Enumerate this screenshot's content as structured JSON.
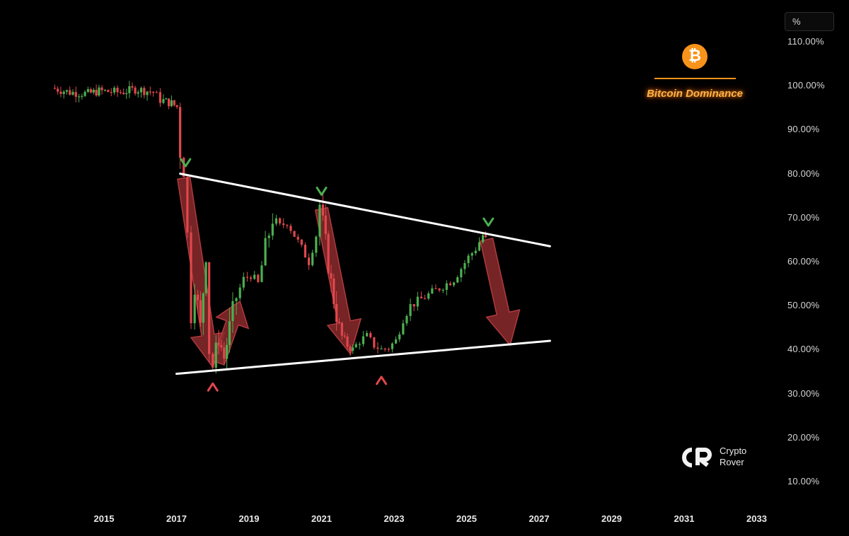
{
  "chart_data": {
    "type": "candlestick",
    "title": "Bitcoin Dominance",
    "unit_label": "%",
    "ylim": [
      5,
      115
    ],
    "xlim": [
      2014.0,
      2033.7
    ],
    "y_ticks": [
      "110.00%",
      "100.00%",
      "90.00%",
      "80.00%",
      "70.00%",
      "60.00%",
      "50.00%",
      "40.00%",
      "30.00%",
      "20.00%",
      "10.00%"
    ],
    "y_tick_values": [
      110,
      100,
      90,
      80,
      70,
      60,
      50,
      40,
      30,
      20,
      10
    ],
    "x_ticks": [
      "2015",
      "2017",
      "2019",
      "2021",
      "2023",
      "2025",
      "2027",
      "2029",
      "2031",
      "2033"
    ],
    "x_tick_values": [
      2015,
      2017,
      2019,
      2021,
      2023,
      2025,
      2027,
      2029,
      2031,
      2033
    ],
    "series": [
      {
        "values": [
          [
            2013.6,
            99.5
          ],
          [
            2014.1,
            98.5
          ],
          [
            2014.6,
            98.2
          ],
          [
            2014.9,
            98.8
          ],
          [
            2015.5,
            98.5
          ],
          [
            2015.9,
            99.2
          ],
          [
            2016.4,
            98.6
          ],
          [
            2016.6,
            96.8
          ],
          [
            2016.9,
            96.0
          ],
          [
            2017.05,
            95.2
          ],
          [
            2017.15,
            85.0
          ],
          [
            2017.25,
            80.0
          ],
          [
            2017.35,
            66.0
          ],
          [
            2017.45,
            48.0
          ],
          [
            2017.55,
            55.0
          ],
          [
            2017.7,
            45.0
          ],
          [
            2017.85,
            62.0
          ],
          [
            2017.95,
            40.0
          ],
          [
            2018.05,
            36.0
          ],
          [
            2018.2,
            43.0
          ],
          [
            2018.35,
            38.0
          ],
          [
            2018.5,
            45.0
          ],
          [
            2018.7,
            52.0
          ],
          [
            2018.9,
            56.0
          ],
          [
            2019.1,
            57.0
          ],
          [
            2019.3,
            55.0
          ],
          [
            2019.5,
            63.0
          ],
          [
            2019.7,
            70.0
          ],
          [
            2019.9,
            68.0
          ],
          [
            2020.1,
            69.0
          ],
          [
            2020.3,
            66.0
          ],
          [
            2020.5,
            63.0
          ],
          [
            2020.7,
            60.0
          ],
          [
            2020.9,
            66.0
          ],
          [
            2021.0,
            73.0
          ],
          [
            2021.15,
            64.0
          ],
          [
            2021.3,
            55.0
          ],
          [
            2021.45,
            48.0
          ],
          [
            2021.6,
            43.0
          ],
          [
            2021.75,
            41.0
          ],
          [
            2021.9,
            40.0
          ],
          [
            2022.1,
            42.0
          ],
          [
            2022.3,
            43.0
          ],
          [
            2022.5,
            41.0
          ],
          [
            2022.7,
            40.0
          ],
          [
            2022.9,
            40.5
          ],
          [
            2023.1,
            42.0
          ],
          [
            2023.3,
            47.0
          ],
          [
            2023.5,
            50.0
          ],
          [
            2023.7,
            51.0
          ],
          [
            2023.9,
            52.0
          ],
          [
            2024.1,
            53.0
          ],
          [
            2024.3,
            54.0
          ],
          [
            2024.5,
            55.0
          ],
          [
            2024.7,
            56.0
          ],
          [
            2024.9,
            58.5
          ],
          [
            2025.1,
            61.0
          ],
          [
            2025.3,
            63.0
          ],
          [
            2025.5,
            66.0
          ],
          [
            2025.55,
            65.0
          ]
        ]
      }
    ],
    "trendlines": [
      {
        "name": "resistance",
        "from": [
          2017.1,
          80.0
        ],
        "to": [
          2027.3,
          63.5
        ]
      },
      {
        "name": "support",
        "from": [
          2017.0,
          34.5
        ],
        "to": [
          2027.3,
          42.0
        ]
      }
    ],
    "arrows": [
      {
        "from": [
          2017.2,
          79.0
        ],
        "to": [
          2018.0,
          36.0
        ]
      },
      {
        "from": [
          2018.15,
          37.0
        ],
        "to": [
          2018.75,
          51.0
        ]
      },
      {
        "from": [
          2021.0,
          72.0
        ],
        "to": [
          2021.8,
          39.0
        ]
      },
      {
        "from": [
          2025.55,
          65.0
        ],
        "to": [
          2026.2,
          41.0
        ]
      }
    ],
    "markers": [
      {
        "type": "top",
        "x": 2017.25,
        "y": 82.5
      },
      {
        "type": "top",
        "x": 2021.0,
        "y": 76.0
      },
      {
        "type": "top",
        "x": 2025.6,
        "y": 69.0
      },
      {
        "type": "bottom",
        "x": 2018.0,
        "y": 31.5
      },
      {
        "type": "bottom",
        "x": 2022.65,
        "y": 33.0
      }
    ],
    "colors": {
      "up": "#4caf50",
      "down": "#e0474c",
      "arrow_fill": "#8b2a2d",
      "arrow_stroke": "#b13a3e",
      "trendline": "#ffffff",
      "marker_top": "#4caf50",
      "marker_bottom": "#e0474c",
      "title": "#ffb14a",
      "logo": "#f7931a"
    }
  },
  "logo": {
    "symbol": "₿",
    "icon": "bitcoin-icon"
  },
  "watermark": {
    "line1": "Crypto",
    "line2": "Rover"
  }
}
